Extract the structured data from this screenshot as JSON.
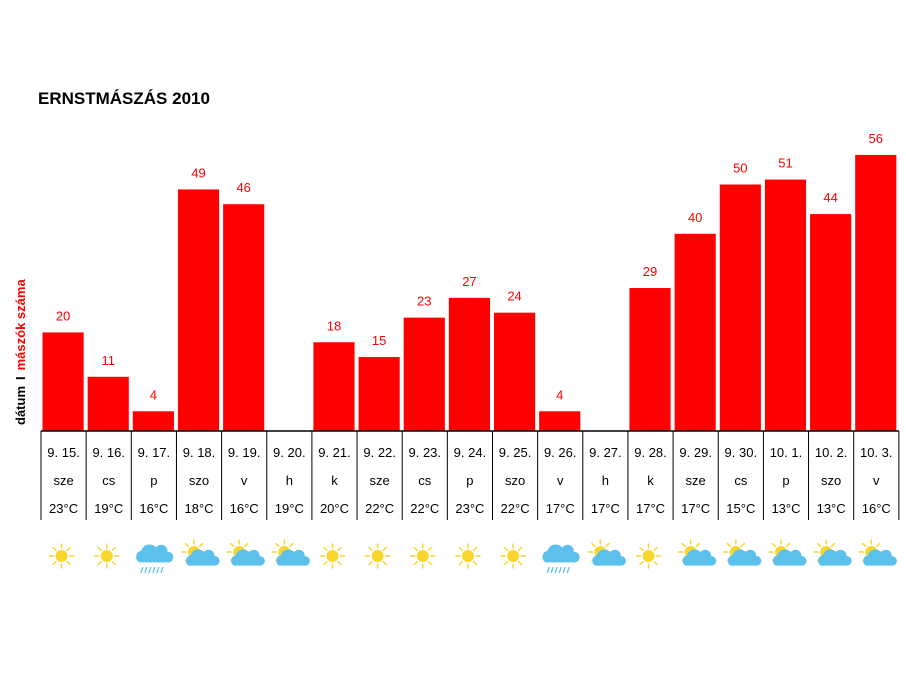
{
  "chart_data": {
    "type": "bar",
    "title": "ERNSTMÁSZÁS 2010",
    "ylabel_date": "dátum",
    "ylabel_sep": "I",
    "ylabel_count": "mászók száma",
    "bar_color": "#ff0000",
    "label_color": "#ff0000",
    "categories": [
      "9. 15.",
      "9. 16.",
      "9. 17.",
      "9. 18.",
      "9. 19.",
      "9. 20.",
      "9. 21.",
      "9. 22.",
      "9. 23.",
      "9. 24.",
      "9. 25.",
      "9. 26.",
      "9. 27.",
      "9. 28.",
      "9. 29.",
      "9. 30.",
      "10. 1.",
      "10. 2.",
      "10. 3."
    ],
    "days": [
      "sze",
      "cs",
      "p",
      "szo",
      "v",
      "h",
      "k",
      "sze",
      "cs",
      "p",
      "szo",
      "v",
      "h",
      "k",
      "sze",
      "cs",
      "p",
      "szo",
      "v"
    ],
    "temps": [
      "23°C",
      "19°C",
      "16°C",
      "18°C",
      "16°C",
      "19°C",
      "20°C",
      "22°C",
      "22°C",
      "23°C",
      "22°C",
      "17°C",
      "17°C",
      "17°C",
      "17°C",
      "15°C",
      "13°C",
      "13°C",
      "16°C"
    ],
    "values": [
      20,
      11,
      4,
      49,
      46,
      null,
      18,
      15,
      23,
      27,
      24,
      4,
      null,
      29,
      40,
      50,
      51,
      44,
      56
    ],
    "weather_icons": [
      "sun-icon",
      "sun-icon",
      "rain-cloud-icon",
      "sun-cloud-icon",
      "sun-cloud-icon",
      "sun-cloud-icon",
      "sun-icon",
      "sun-icon",
      "sun-icon",
      "sun-icon",
      "sun-icon",
      "rain-cloud-icon",
      "sun-cloud-icon",
      "sun-icon",
      "sun-cloud-icon",
      "sun-cloud-icon",
      "sun-cloud-icon",
      "sun-cloud-icon",
      "sun-cloud-icon"
    ],
    "ylim": [
      0,
      60
    ],
    "grid": false,
    "legend": "none"
  }
}
